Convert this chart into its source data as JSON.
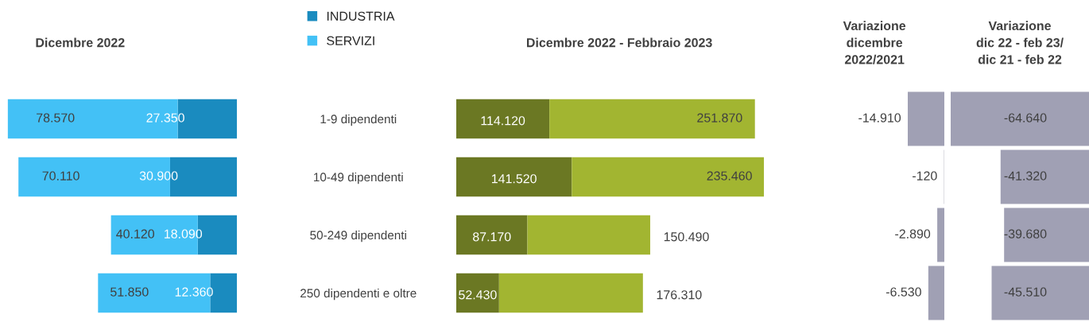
{
  "chart_data": [
    {
      "type": "bar",
      "title": "Dicembre 2022",
      "orientation": "horizontal",
      "stacked": true,
      "categories": [
        "1-9 dipendenti",
        "10-49 dipendenti",
        "50-249 dipendenti",
        "250 dipendenti e oltre"
      ],
      "xlim": [
        106600,
        0
      ],
      "tick_labels": "y",
      "legend": "top right",
      "series": [
        {
          "name": "INDUSTRIA",
          "color": "#1a8bbf",
          "values": [
            27350,
            30900,
            18090,
            12360
          ],
          "value_labels": [
            "27.350",
            "30.900",
            "18.090",
            "12.360"
          ]
        },
        {
          "name": "SERVIZI",
          "color": "#43c1f6",
          "values": [
            78570,
            70110,
            40120,
            51850
          ],
          "value_labels": [
            "78.570",
            "70.110",
            "40.120",
            "51.850"
          ]
        }
      ]
    },
    {
      "type": "bar",
      "title": "Dicembre 2022 - Febbraio 2023",
      "orientation": "horizontal",
      "stacked": true,
      "categories": [
        null,
        null,
        null,
        null
      ],
      "tick_labels": false,
      "series": [
        {
          "color": "#6b7823",
          "values": [
            114120,
            141520,
            87170,
            52430
          ],
          "value_labels": [
            "114.120",
            "141.520",
            "87.170",
            "52.430"
          ]
        },
        {
          "color": "#a2b531",
          "values": [
            251870,
            235460,
            150490,
            176310
          ],
          "value_labels": [
            "251.870",
            "235.460",
            "150.490",
            "176.310"
          ]
        }
      ]
    },
    {
      "type": "bar",
      "title": "Variazione\ndicembre\n2022/2021",
      "orientation": "horizontal",
      "categories": [
        null,
        null,
        null,
        null
      ],
      "tick_labels": false,
      "series": [
        {
          "color": "#a0a0b4",
          "values": [
            -14910,
            -120,
            -2890,
            -6530
          ],
          "value_labels": [
            "-14.910",
            "-120",
            "-2.890",
            "-6.530"
          ]
        }
      ]
    },
    {
      "type": "bar",
      "title": "Variazione\ndic 22 - feb 23/\ndic 21 - feb 22",
      "orientation": "horizontal",
      "categories": [
        null,
        null,
        null,
        null
      ],
      "xlim": [
        -64640,
        0
      ],
      "tick_labels": false,
      "series": [
        {
          "color": "#a0a0b4",
          "values": [
            -64640,
            -41320,
            -39680,
            -45510
          ],
          "value_labels": [
            "-64.640",
            "-41.320",
            "-39.680",
            "-45.510"
          ]
        }
      ]
    }
  ]
}
